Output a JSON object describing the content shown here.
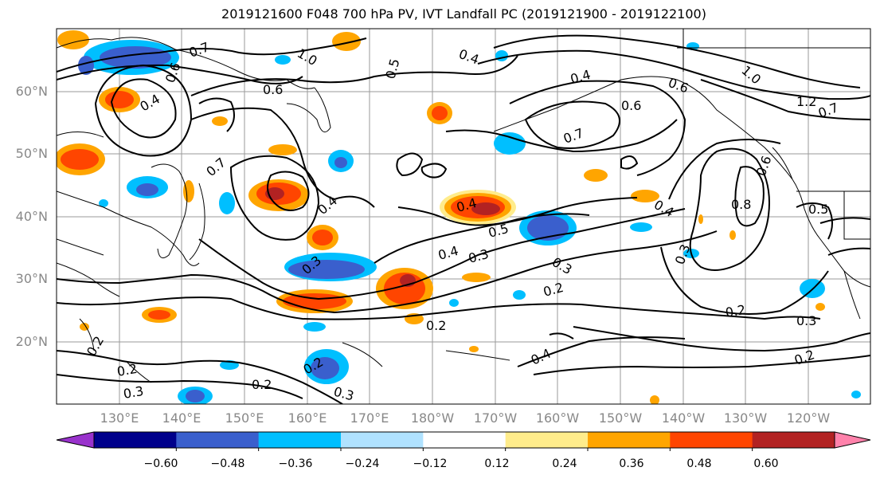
{
  "title": "2019121600 F048 700 hPa PV, IVT Landfall PC (2019121900 - 2019122100)",
  "lat_labels": [
    "60°N",
    "50°N",
    "40°N",
    "30°N",
    "20°N"
  ],
  "lon_labels": [
    "130°E",
    "140°E",
    "150°E",
    "160°E",
    "170°E",
    "180°W",
    "170°W",
    "160°W",
    "150°W",
    "140°W",
    "130°W",
    "120°W"
  ],
  "colorbar": {
    "colors": [
      "#9932cc",
      "#00008b",
      "#3a5fcd",
      "#00bfff",
      "#b0e2ff",
      "#ffffff",
      "#ffec8b",
      "#ffa500",
      "#ff4500",
      "#b22222",
      "#ff82ab"
    ],
    "tick_labels": [
      "−0.60",
      "−0.48",
      "−0.36",
      "−0.24",
      "−0.12",
      "0.12",
      "0.24",
      "0.36",
      "0.48",
      "0.60"
    ]
  },
  "contour_labels": [
    "0.7",
    "1.0",
    "0.4",
    "0.5",
    "0.4",
    "0.6",
    "0.6",
    "1.0",
    "1.2",
    "0.6",
    "0.7",
    "0.4",
    "0.7",
    "0.6",
    "0.7",
    "0.4",
    "0.4",
    "0.5",
    "0.4",
    "0.3",
    "0.8",
    "0.5",
    "0.3",
    "0.3",
    "0.3",
    "0.2",
    "0.2",
    "0.2",
    "0.3",
    "0.2",
    "0.4",
    "0.2",
    "0.2",
    "0.2",
    "0.3",
    "0.3",
    "0.2",
    "0.4",
    "0.6"
  ]
}
